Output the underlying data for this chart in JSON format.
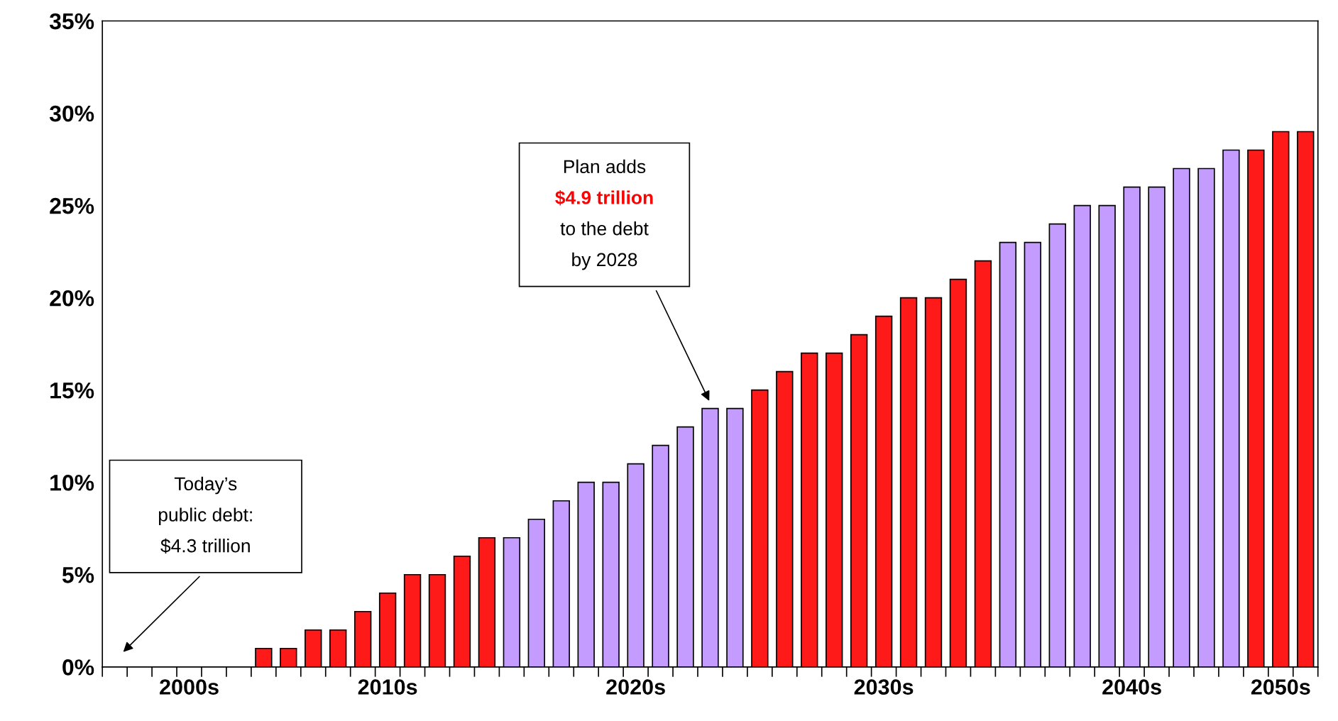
{
  "chart_data": {
    "type": "bar",
    "categories": [
      null,
      null,
      null,
      "2000s",
      null,
      null,
      null,
      null,
      null,
      null,
      null,
      "2010s",
      null,
      null,
      null,
      null,
      null,
      null,
      null,
      null,
      null,
      "2020s",
      null,
      null,
      null,
      null,
      null,
      null,
      null,
      null,
      null,
      "2030s",
      null,
      null,
      null,
      null,
      null,
      null,
      null,
      null,
      null,
      "2040s",
      null,
      null,
      null,
      null,
      null,
      "2050s",
      null
    ],
    "values": [
      null,
      null,
      null,
      null,
      null,
      null,
      1,
      1,
      2,
      2,
      3,
      4,
      5,
      5,
      6,
      7,
      7,
      8,
      9,
      10,
      10,
      11,
      12,
      13,
      14,
      14,
      15,
      16,
      17,
      17,
      18,
      19,
      20,
      20,
      21,
      22,
      23,
      23,
      24,
      25,
      25,
      26,
      26,
      27,
      27,
      28,
      28,
      29,
      29
    ],
    "colors": [
      "#ff1a1a",
      "#ff1a1a",
      "#ff1a1a",
      "#ff1a1a",
      "#ff1a1a",
      "#ff1a1a",
      "#ff1a1a",
      "#ff1a1a",
      "#ff1a1a",
      "#ff1a1a",
      "#ff1a1a",
      "#ff1a1a",
      "#ff1a1a",
      "#ff1a1a",
      "#ff1a1a",
      "#ff1a1a",
      "#c49cff",
      "#c49cff",
      "#c49cff",
      "#c49cff",
      "#c49cff",
      "#c49cff",
      "#c49cff",
      "#c49cff",
      "#c49cff",
      "#c49cff",
      "#ff1a1a",
      "#ff1a1a",
      "#ff1a1a",
      "#ff1a1a",
      "#ff1a1a",
      "#ff1a1a",
      "#ff1a1a",
      "#ff1a1a",
      "#ff1a1a",
      "#ff1a1a",
      "#c49cff",
      "#c49cff",
      "#c49cff",
      "#c49cff",
      "#c49cff",
      "#c49cff",
      "#c49cff",
      "#c49cff",
      "#c49cff",
      "#c49cff",
      "#ff1a1a",
      "#ff1a1a",
      "#ff1a1a"
    ],
    "ylim": [
      0,
      35
    ],
    "yticks": [
      {
        "value": 0,
        "label": "0%"
      },
      {
        "value": 5,
        "label": "5%"
      },
      {
        "value": 10,
        "label": "10%"
      },
      {
        "value": 15,
        "label": "15%"
      },
      {
        "value": 20,
        "label": "20%"
      },
      {
        "value": 25,
        "label": "25%"
      },
      {
        "value": 30,
        "label": "30%"
      },
      {
        "value": 35,
        "label": "35%"
      }
    ],
    "grid": false,
    "legend": false,
    "annotations": [
      "Today’s\npublic debt:\n$4.3 trillion",
      "Plan adds\n$4.9 trillion\nto the debt\nby 2028"
    ]
  }
}
